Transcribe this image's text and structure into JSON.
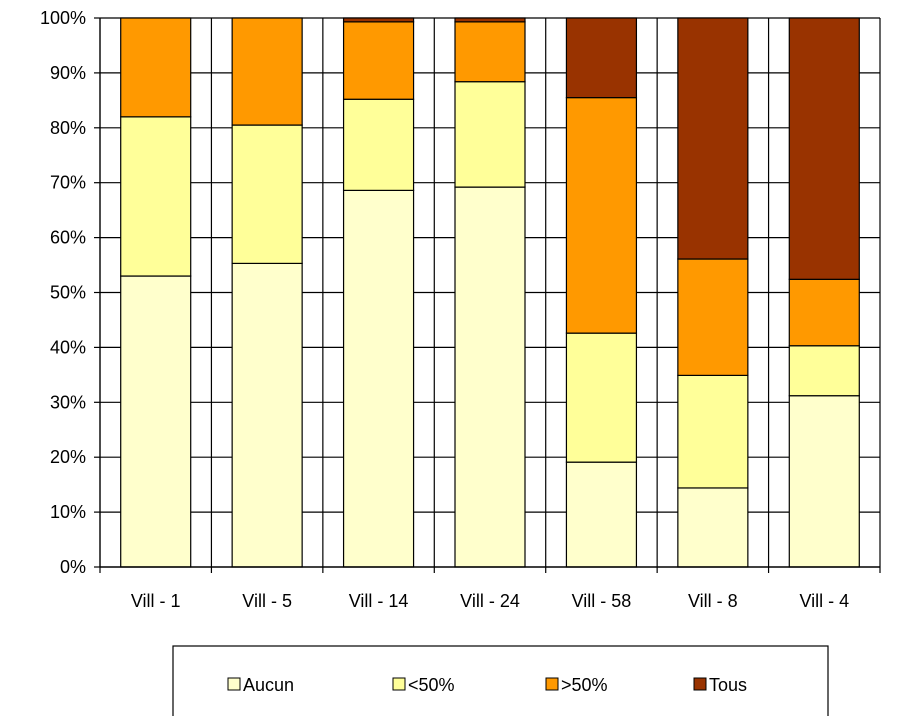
{
  "chart_data": {
    "type": "bar",
    "stacked": true,
    "percent_stacked": true,
    "categories": [
      "Vill - 1",
      "Vill - 5",
      "Vill - 14",
      "Vill - 24",
      "Vill - 58",
      "Vill - 8",
      "Vill - 4"
    ],
    "series": [
      {
        "name": "Aucun",
        "color": "#ffffcc",
        "values": [
          53.0,
          55.3,
          68.6,
          69.2,
          19.1,
          14.4,
          31.2
        ]
      },
      {
        "name": "<50%",
        "color": "#ffff99",
        "values": [
          29.0,
          25.2,
          16.6,
          19.2,
          23.5,
          20.5,
          9.1
        ]
      },
      {
        "name": ">50%",
        "color": "#ff9900",
        "values": [
          18.0,
          19.5,
          14.1,
          10.9,
          42.9,
          21.2,
          12.1
        ]
      },
      {
        "name": "Tous",
        "color": "#993300",
        "values": [
          0.0,
          0.0,
          0.7,
          0.7,
          14.5,
          43.9,
          47.6
        ]
      }
    ],
    "y_ticks": [
      "0%",
      "10%",
      "20%",
      "30%",
      "40%",
      "50%",
      "60%",
      "70%",
      "80%",
      "90%",
      "100%"
    ],
    "ylim": [
      0,
      100
    ],
    "grid": true,
    "legend_position": "bottom"
  }
}
